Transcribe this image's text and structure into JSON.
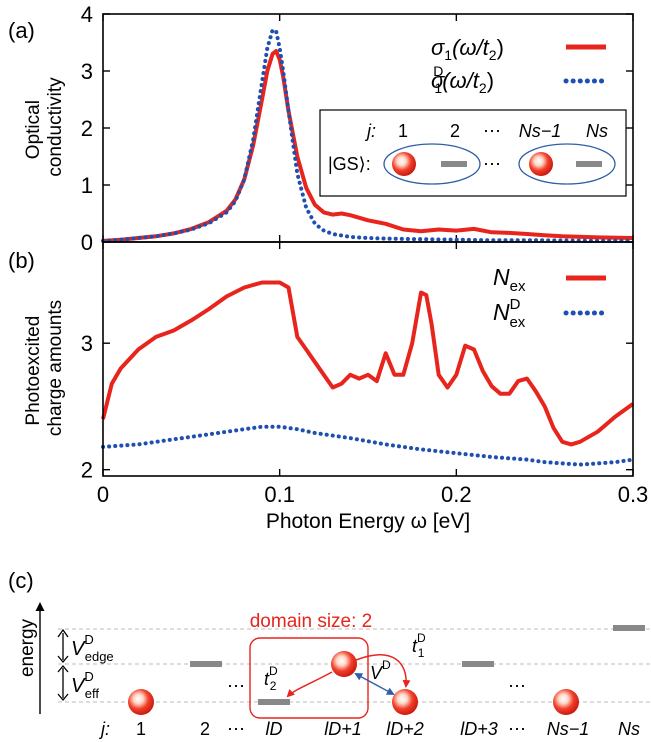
{
  "panel_labels": {
    "a": "(a)",
    "b": "(b)",
    "c": "(c)"
  },
  "colors": {
    "solid": "#e8251d",
    "dotted": "#1f4fb0",
    "particle": "#e8251d",
    "bar": "#888888",
    "ellipse": "#2f5fa8",
    "guide": "#bdbdbd"
  },
  "chart_data": [
    {
      "type": "line",
      "panel": "(a)",
      "ylabel_lines": [
        "Optical",
        "conductivity"
      ],
      "xlim": [
        0,
        0.3
      ],
      "ylim": [
        0,
        4
      ],
      "yticks": [
        0,
        1,
        2,
        3,
        4
      ],
      "ytick_labels": [
        "0",
        "1",
        "2",
        "3",
        "4"
      ],
      "legend_position": "top-right",
      "series": [
        {
          "name": "σ1(ω/t2)",
          "style": "solid",
          "x": [
            0,
            0.01,
            0.02,
            0.03,
            0.04,
            0.05,
            0.06,
            0.07,
            0.075,
            0.08,
            0.085,
            0.09,
            0.093,
            0.096,
            0.098,
            0.1,
            0.102,
            0.105,
            0.11,
            0.115,
            0.12,
            0.125,
            0.13,
            0.135,
            0.14,
            0.15,
            0.16,
            0.17,
            0.18,
            0.19,
            0.2,
            0.21,
            0.22,
            0.23,
            0.24,
            0.25,
            0.26,
            0.28,
            0.3
          ],
          "y": [
            0.02,
            0.04,
            0.07,
            0.1,
            0.15,
            0.23,
            0.35,
            0.55,
            0.75,
            1.1,
            1.7,
            2.5,
            3.0,
            3.3,
            3.35,
            3.2,
            2.9,
            2.3,
            1.5,
            0.95,
            0.65,
            0.52,
            0.48,
            0.5,
            0.47,
            0.38,
            0.32,
            0.22,
            0.19,
            0.22,
            0.2,
            0.23,
            0.17,
            0.16,
            0.14,
            0.12,
            0.1,
            0.08,
            0.07
          ]
        },
        {
          "name": "σ1D(ω/t2)",
          "style": "dotted",
          "x": [
            0,
            0.01,
            0.02,
            0.03,
            0.04,
            0.05,
            0.06,
            0.07,
            0.075,
            0.08,
            0.085,
            0.09,
            0.093,
            0.096,
            0.098,
            0.1,
            0.102,
            0.105,
            0.11,
            0.115,
            0.12,
            0.125,
            0.13,
            0.14,
            0.15,
            0.16,
            0.18,
            0.2,
            0.22,
            0.25,
            0.28,
            0.3
          ],
          "y": [
            0.02,
            0.04,
            0.07,
            0.1,
            0.15,
            0.22,
            0.33,
            0.52,
            0.72,
            1.1,
            1.8,
            2.8,
            3.4,
            3.72,
            3.7,
            3.4,
            3.0,
            2.3,
            1.2,
            0.6,
            0.32,
            0.2,
            0.14,
            0.09,
            0.07,
            0.06,
            0.05,
            0.04,
            0.03,
            0.03,
            0.02,
            0.02
          ]
        }
      ]
    },
    {
      "type": "line",
      "panel": "(b)",
      "ylabel_lines": [
        "Photoexcited",
        "charge amounts"
      ],
      "xlabel": "Photon Energy ω [eV]",
      "xlim": [
        0,
        0.3
      ],
      "ylim": [
        1.95,
        3.8
      ],
      "xticks": [
        0,
        0.1,
        0.2,
        0.3
      ],
      "xtick_labels": [
        "0",
        "0.1",
        "0.2",
        "0.3"
      ],
      "yticks": [
        2,
        3
      ],
      "ytick_labels": [
        "2",
        "3"
      ],
      "legend_position": "top-right",
      "series": [
        {
          "name": "Nex",
          "style": "solid",
          "x": [
            0,
            0.005,
            0.01,
            0.02,
            0.03,
            0.04,
            0.05,
            0.06,
            0.07,
            0.08,
            0.09,
            0.1,
            0.105,
            0.11,
            0.115,
            0.12,
            0.125,
            0.13,
            0.135,
            0.14,
            0.145,
            0.15,
            0.155,
            0.16,
            0.165,
            0.17,
            0.175,
            0.18,
            0.183,
            0.186,
            0.19,
            0.195,
            0.2,
            0.205,
            0.21,
            0.215,
            0.22,
            0.225,
            0.23,
            0.235,
            0.24,
            0.245,
            0.25,
            0.255,
            0.26,
            0.265,
            0.27,
            0.28,
            0.29,
            0.3
          ],
          "y": [
            2.4,
            2.68,
            2.8,
            2.95,
            3.05,
            3.1,
            3.18,
            3.27,
            3.37,
            3.44,
            3.48,
            3.48,
            3.44,
            3.05,
            2.95,
            2.85,
            2.75,
            2.65,
            2.68,
            2.75,
            2.72,
            2.75,
            2.7,
            2.92,
            2.75,
            2.75,
            3.0,
            3.4,
            3.38,
            3.15,
            2.75,
            2.65,
            2.75,
            2.98,
            2.95,
            2.78,
            2.66,
            2.6,
            2.6,
            2.7,
            2.72,
            2.62,
            2.5,
            2.33,
            2.22,
            2.2,
            2.22,
            2.3,
            2.42,
            2.52
          ]
        },
        {
          "name": "NexD",
          "style": "dotted",
          "x": [
            0,
            0.02,
            0.04,
            0.06,
            0.08,
            0.09,
            0.1,
            0.11,
            0.12,
            0.14,
            0.16,
            0.18,
            0.2,
            0.22,
            0.24,
            0.25,
            0.26,
            0.27,
            0.28,
            0.29,
            0.3
          ],
          "y": [
            2.18,
            2.2,
            2.24,
            2.28,
            2.32,
            2.34,
            2.34,
            2.32,
            2.29,
            2.25,
            2.2,
            2.16,
            2.13,
            2.1,
            2.08,
            2.06,
            2.05,
            2.04,
            2.05,
            2.06,
            2.08
          ]
        }
      ]
    }
  ],
  "legend_a": {
    "solid": {
      "sym": "σ",
      "sub": "1",
      "arg_open": "(ω/t",
      "arg_sub": "2",
      "arg_close": ")"
    },
    "dotted": {
      "sym": "σ",
      "sub": "1",
      "sup": "D",
      "arg_open": "(ω/t",
      "arg_sub": "2",
      "arg_close": ")"
    }
  },
  "legend_b": {
    "solid": {
      "sym": "N",
      "sub": "ex"
    },
    "dotted": {
      "sym": "N",
      "sub": "ex",
      "sup": "D"
    }
  },
  "inset": {
    "j_label": "j:",
    "site_labels": [
      "1",
      "2",
      "⋯",
      "Ns−1",
      "Ns"
    ],
    "gs_label": "|GS⟩:",
    "ellipsis": "⋯"
  },
  "schematic": {
    "energy_label": "energy",
    "domain_label": "domain size: 2",
    "j_label": "j:",
    "v_edge": {
      "sym": "V",
      "sup": "D",
      "sub": "edge"
    },
    "v_eff": {
      "sym": "V",
      "sup": "D",
      "sub": "eff"
    },
    "t1": {
      "sym": "t",
      "sup": "D",
      "sub": "1"
    },
    "t2": {
      "sym": "t",
      "sup": "D",
      "sub": "2"
    },
    "vd": {
      "sym": "V",
      "sup": "D"
    },
    "ellipsis": "⋯",
    "site_labels": [
      "1",
      "2",
      "⋯",
      "lD",
      "lD+1",
      "lD+2",
      "lD+3",
      "⋯",
      "Ns−1",
      "Ns"
    ]
  }
}
